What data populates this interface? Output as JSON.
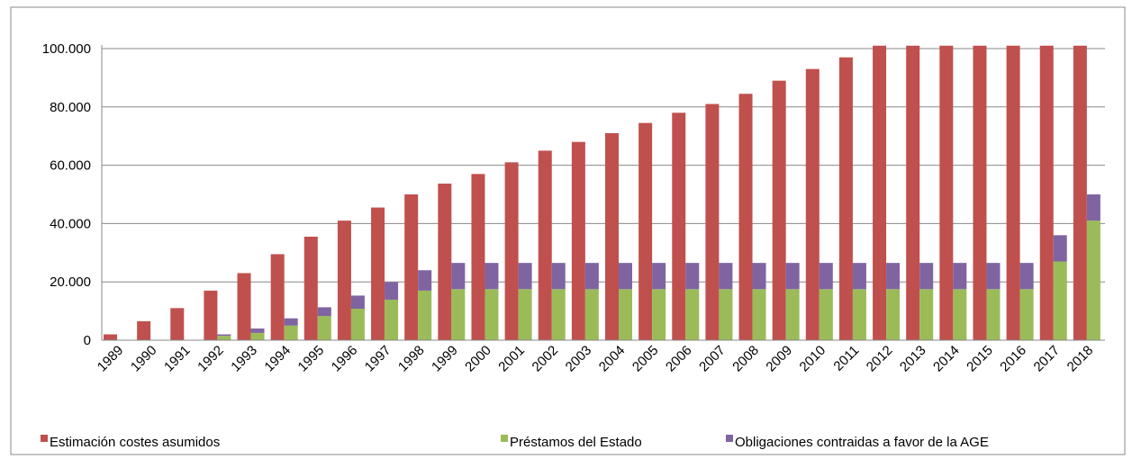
{
  "chart_data": {
    "type": "bar",
    "categories": [
      "1989",
      "1990",
      "1991",
      "1992",
      "1993",
      "1994",
      "1995",
      "1996",
      "1997",
      "1998",
      "1999",
      "2000",
      "2001",
      "2002",
      "2003",
      "2004",
      "2005",
      "2006",
      "2007",
      "2008",
      "2009",
      "2010",
      "2011",
      "2012",
      "2013",
      "2014",
      "2015",
      "2016",
      "2017",
      "2018"
    ],
    "series": [
      {
        "name": "Estimación costes asumidos",
        "color": "#c0504d",
        "stack": "a",
        "values": [
          2000,
          6500,
          11000,
          17000,
          23000,
          29500,
          35500,
          41000,
          45500,
          50000,
          53700,
          57000,
          61000,
          65000,
          68000,
          71000,
          74500,
          78000,
          81000,
          84500,
          89000,
          93000,
          97000,
          101000,
          101000,
          101000,
          101000,
          101000,
          101000,
          101000
        ]
      },
      {
        "name": "Préstamos del Estado",
        "color": "#9bbb59",
        "stack": "b",
        "values": [
          null,
          null,
          null,
          1500,
          2500,
          5000,
          8300,
          10800,
          13900,
          17000,
          17500,
          17500,
          17500,
          17500,
          17500,
          17500,
          17500,
          17500,
          17500,
          17500,
          17500,
          17500,
          17500,
          17500,
          17500,
          17500,
          17500,
          17500,
          27000,
          41000
        ]
      },
      {
        "name": "Obligaciones contraidas a favor de la AGE",
        "color": "#8064a2",
        "stack": "b",
        "values": [
          null,
          null,
          null,
          500,
          1500,
          2500,
          3000,
          4500,
          6000,
          7000,
          9000,
          9000,
          9000,
          9000,
          9000,
          9000,
          9000,
          9000,
          9000,
          9000,
          9000,
          9000,
          9000,
          9000,
          9000,
          9000,
          9000,
          9000,
          9000,
          9000
        ]
      }
    ],
    "ylim": [
      0,
      100000
    ],
    "yticks": [
      0,
      {
        "value": 20000,
        "label": "20.000"
      },
      {
        "value": 40000,
        "label": "40.000"
      },
      {
        "value": 60000,
        "label": "60.000"
      },
      {
        "value": 80000,
        "label": "80.000"
      },
      {
        "value": 100000,
        "label": "100.000"
      }
    ],
    "grid": true
  }
}
